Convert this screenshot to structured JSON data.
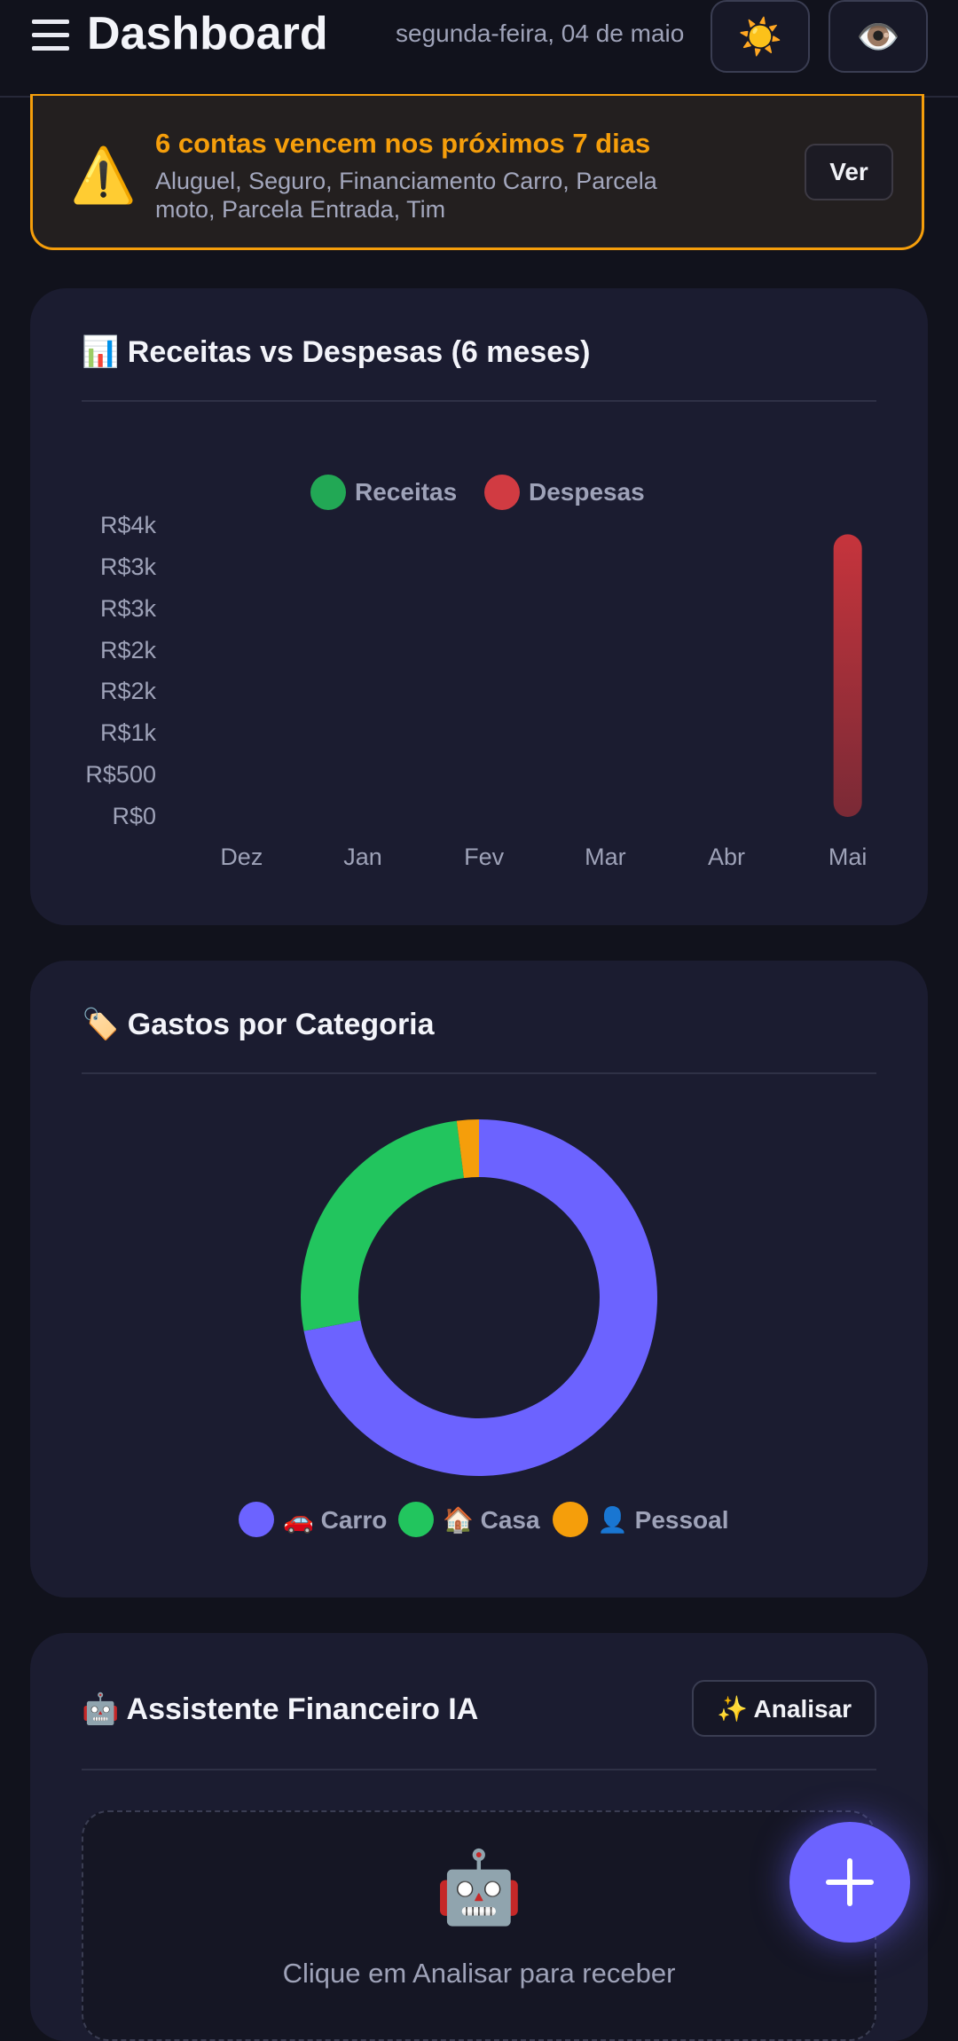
{
  "header": {
    "title": "Dashboard",
    "date": "segunda-feira, 04 de maio",
    "theme_icon": "☀️",
    "eye_icon": "👁️"
  },
  "alert": {
    "icon": "⚠️",
    "title": "6 contas vencem nos próximos 7 dias",
    "description": "Aluguel, Seguro, Financiamento Carro, Parcela moto, Parcela Entrada, Tim",
    "button_label": "Ver"
  },
  "income_chart": {
    "title": "📊 Receitas vs Despesas (6 meses)",
    "legend": [
      "Receitas",
      "Despesas"
    ],
    "colors": {
      "receitas": "#22c55e",
      "despesas": "#ef4444"
    },
    "y_ticks": [
      "R$4k",
      "R$3k",
      "R$3k",
      "R$2k",
      "R$2k",
      "R$1k",
      "R$500",
      "R$0"
    ]
  },
  "chart_data": [
    {
      "type": "bar",
      "title": "📊 Receitas vs Despesas (6 meses)",
      "categories": [
        "Dez",
        "Jan",
        "Fev",
        "Mar",
        "Abr",
        "Mai"
      ],
      "series": [
        {
          "name": "Receitas",
          "values": [
            0,
            0,
            0,
            0,
            0,
            0
          ]
        },
        {
          "name": "Despesas",
          "values": [
            0,
            0,
            0,
            0,
            0,
            3400
          ]
        }
      ],
      "ylim": [
        0,
        3500
      ],
      "y_tick_values": [
        3500,
        3000,
        2500,
        2000,
        1500,
        1000,
        500,
        0
      ],
      "legend": "top-center",
      "grid": false
    },
    {
      "type": "pie",
      "title": "🏷️ Gastos por Categoria",
      "labels": [
        "🚗 Carro",
        "🏠 Casa",
        "👤 Pessoal"
      ],
      "values": [
        72,
        26,
        2
      ],
      "colors": [
        "#6c63ff",
        "#22c55e",
        "#f59e0b"
      ],
      "legend": "bottom"
    }
  ],
  "category_chart": {
    "title": "🏷️ Gastos por Categoria"
  },
  "assistant": {
    "title": "🤖 Assistente Financeiro IA",
    "button_label": "✨ Analisar",
    "robot_icon": "🤖",
    "hint": "Clique em Analisar para receber"
  },
  "fab": {
    "icon": "plus-icon"
  }
}
